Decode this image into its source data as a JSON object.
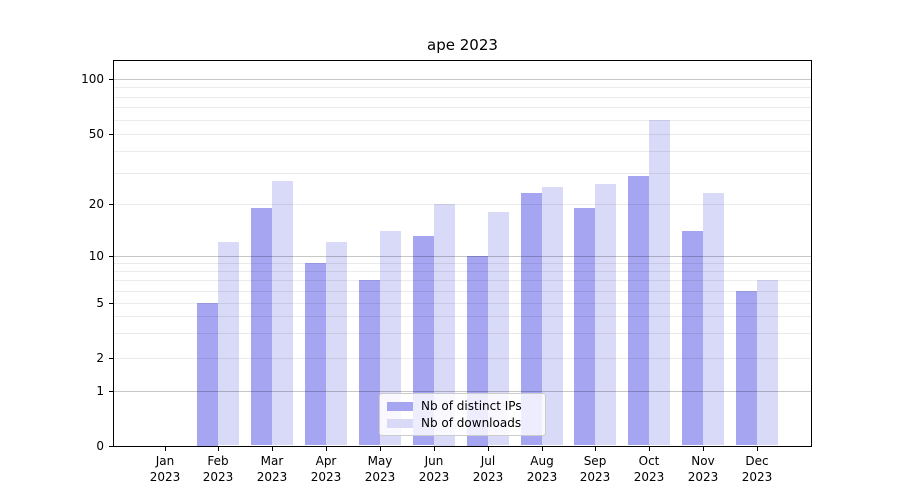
{
  "title": "ape 2023",
  "colors": {
    "ips": "#a5a5f2",
    "downloads": "#d9d9f8",
    "grid_major": "rgba(0,0,0,0.22)",
    "grid_minor": "rgba(0,0,0,0.08)",
    "spine": "#000000",
    "legend_border": "#cccccc",
    "background": "#ffffff"
  },
  "legend": {
    "items": [
      {
        "label": "Nb of distinct IPs",
        "series": "ips"
      },
      {
        "label": "Nb of downloads",
        "series": "downloads"
      }
    ]
  },
  "y_axis": {
    "scale": "symlog",
    "tick_values": [
      0,
      1,
      2,
      5,
      10,
      20,
      50,
      100
    ],
    "minor_grid_values": [
      2,
      3,
      4,
      5,
      6,
      7,
      8,
      9,
      20,
      30,
      40,
      50,
      60,
      70,
      80,
      90
    ],
    "major_grid_values": [
      1,
      10,
      100
    ]
  },
  "chart_data": {
    "type": "bar",
    "title": "ape 2023",
    "categories": [
      "Jan 2023",
      "Feb 2023",
      "Mar 2023",
      "Apr 2023",
      "May 2023",
      "Jun 2023",
      "Jul 2023",
      "Aug 2023",
      "Sep 2023",
      "Oct 2023",
      "Nov 2023",
      "Dec 2023"
    ],
    "series": [
      {
        "name": "Nb of distinct IPs",
        "color_key": "ips",
        "values": [
          0,
          5,
          19,
          9,
          7,
          13,
          10,
          23,
          19,
          29,
          14,
          6
        ]
      },
      {
        "name": "Nb of downloads",
        "color_key": "downloads",
        "values": [
          0,
          12,
          27,
          12,
          14,
          20,
          18,
          25,
          26,
          60,
          23,
          7
        ]
      }
    ],
    "xlabel": "",
    "ylabel": "",
    "ylim": [
      0,
      100
    ],
    "yticks": [
      0,
      1,
      2,
      5,
      10,
      20,
      50,
      100
    ],
    "yscale": "symlog",
    "grid": true,
    "legend_position": "lower center"
  }
}
